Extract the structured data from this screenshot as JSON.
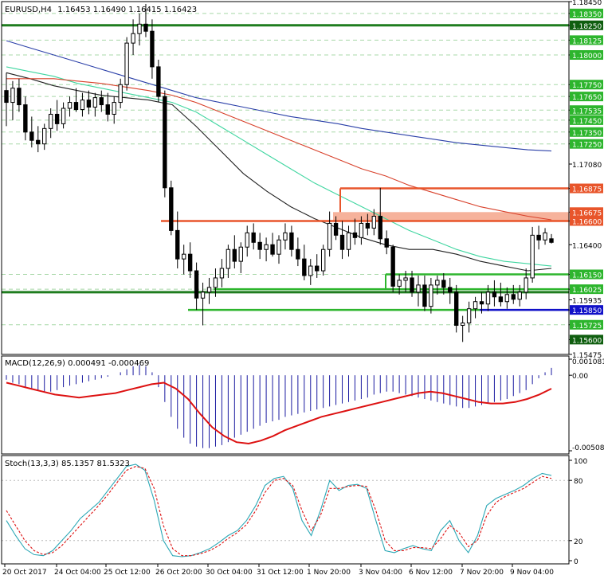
{
  "header": {
    "symbol": "EURUSD,H4",
    "ohlc": "1.16453 1.16490 1.16415 1.16423"
  },
  "colors": {
    "background": "#ffffff",
    "frame": "#000000",
    "grid_dash": "#a8d8a8",
    "candle_bull": "#ffffff",
    "candle_bear": "#000000",
    "level_green": "#2db52d",
    "level_darkgreen": "#1f7d1f",
    "level_red": "#e8552b",
    "zone_fill": "#f4a48a",
    "level_blue": "#1010c8",
    "ma_black": "#202020",
    "ma_cyan": "#3fd6a0",
    "ma_red": "#d8402a",
    "ma_blue": "#2a3fa8",
    "macd_signal": "#dd1111",
    "stoch_main": "#2aa7b5",
    "stoch_signal": "#dd1111",
    "label_green_bg": "#2db52d",
    "label_dark_bg": "#0f5e0f",
    "label_grey_text": "#ffffff"
  },
  "price_axis": {
    "min": 1.15475,
    "max": 1.1845,
    "labels": [
      {
        "value": "1.18450",
        "kind": "plain"
      },
      {
        "value": "1.18350",
        "kind": "green"
      },
      {
        "value": "1.18250",
        "kind": "dark"
      },
      {
        "value": "1.18125",
        "kind": "green"
      },
      {
        "value": "1.18000",
        "kind": "green"
      },
      {
        "value": "1.17750",
        "kind": "green"
      },
      {
        "value": "1.17650",
        "kind": "green"
      },
      {
        "value": "1.17535",
        "kind": "green"
      },
      {
        "value": "1.17450",
        "kind": "green"
      },
      {
        "value": "1.17350",
        "kind": "green"
      },
      {
        "value": "1.17250",
        "kind": "green"
      },
      {
        "value": "1.17080",
        "kind": "plain"
      },
      {
        "value": "1.16875",
        "kind": "red"
      },
      {
        "value": "1.16675",
        "kind": "red"
      },
      {
        "value": "1.16600",
        "kind": "red"
      },
      {
        "value": "1.16400",
        "kind": "plain"
      },
      {
        "value": "1.16150",
        "kind": "green"
      },
      {
        "value": "1.16025",
        "kind": "green"
      },
      {
        "value": "1.15935",
        "kind": "plain"
      },
      {
        "value": "1.15850",
        "kind": "blue"
      },
      {
        "value": "1.15725",
        "kind": "green"
      },
      {
        "value": "1.15600",
        "kind": "dark"
      },
      {
        "value": "1.15475",
        "kind": "plain"
      }
    ]
  },
  "time_axis": {
    "labels": [
      "20 Oct 2017",
      "24 Oct 04:00",
      "25 Oct 12:00",
      "26 Oct 20:00",
      "30 Oct 04:00",
      "31 Oct 12:00",
      "1 Nov 20:00",
      "3 Nov 04:00",
      "6 Nov 12:00",
      "7 Nov 20:00",
      "9 Nov 04:00"
    ]
  },
  "macd": {
    "title": "MACD(12,26,9) 0.000491 -0.000469",
    "axis_labels": [
      "0.001081",
      "0.00",
      "-0.005081"
    ],
    "min": -0.005081,
    "max": 0.001081
  },
  "stoch": {
    "title": "Stoch(13,3,3) 85.1357 81.5323",
    "axis_labels": [
      "100",
      "80",
      "20",
      "0"
    ]
  },
  "chart_data": [
    {
      "type": "candlestick",
      "title": "EURUSD,H4",
      "ylim": [
        1.15475,
        1.1845
      ],
      "candles": [
        [
          1.177,
          1.1785,
          1.174,
          1.176
        ],
        [
          1.176,
          1.1778,
          1.1745,
          1.1772
        ],
        [
          1.1772,
          1.178,
          1.1752,
          1.1758
        ],
        [
          1.1758,
          1.1765,
          1.1728,
          1.1735
        ],
        [
          1.1735,
          1.1748,
          1.1722,
          1.1728
        ],
        [
          1.1728,
          1.174,
          1.1718,
          1.1725
        ],
        [
          1.1725,
          1.1742,
          1.172,
          1.1738
        ],
        [
          1.1738,
          1.1755,
          1.173,
          1.175
        ],
        [
          1.175,
          1.1762,
          1.1736,
          1.1742
        ],
        [
          1.1742,
          1.176,
          1.1738,
          1.1755
        ],
        [
          1.1755,
          1.1765,
          1.1748,
          1.176
        ],
        [
          1.176,
          1.1772,
          1.1752,
          1.1754
        ],
        [
          1.1754,
          1.1768,
          1.1748,
          1.1762
        ],
        [
          1.1762,
          1.177,
          1.175,
          1.1756
        ],
        [
          1.1756,
          1.1768,
          1.1748,
          1.1764
        ],
        [
          1.1764,
          1.177,
          1.1752,
          1.1758
        ],
        [
          1.1758,
          1.1768,
          1.1744,
          1.175
        ],
        [
          1.175,
          1.1765,
          1.1742,
          1.176
        ],
        [
          1.176,
          1.178,
          1.1755,
          1.1775
        ],
        [
          1.1775,
          1.1815,
          1.177,
          1.181
        ],
        [
          1.181,
          1.183,
          1.18,
          1.1818
        ],
        [
          1.1818,
          1.1835,
          1.1808,
          1.1826
        ],
        [
          1.1826,
          1.1843,
          1.1815,
          1.182
        ],
        [
          1.182,
          1.183,
          1.178,
          1.179
        ],
        [
          1.179,
          1.1796,
          1.176,
          1.1765
        ],
        [
          1.1765,
          1.177,
          1.168,
          1.1688
        ],
        [
          1.1688,
          1.1694,
          1.1648,
          1.1652
        ],
        [
          1.1652,
          1.1668,
          1.162,
          1.1628
        ],
        [
          1.1628,
          1.164,
          1.1615,
          1.1632
        ],
        [
          1.1632,
          1.1642,
          1.1612,
          1.1618
        ],
        [
          1.1618,
          1.1625,
          1.1585,
          1.1595
        ],
        [
          1.1595,
          1.1608,
          1.1572,
          1.16
        ],
        [
          1.16,
          1.1612,
          1.159,
          1.1604
        ],
        [
          1.1604,
          1.162,
          1.1596,
          1.1612
        ],
        [
          1.1612,
          1.1628,
          1.1604,
          1.162
        ],
        [
          1.162,
          1.164,
          1.1612,
          1.1636
        ],
        [
          1.1636,
          1.1648,
          1.162,
          1.1626
        ],
        [
          1.1626,
          1.1642,
          1.1616,
          1.1638
        ],
        [
          1.1638,
          1.1656,
          1.163,
          1.165
        ],
        [
          1.165,
          1.1658,
          1.1636,
          1.1642
        ],
        [
          1.1642,
          1.165,
          1.1628,
          1.1636
        ],
        [
          1.1636,
          1.1646,
          1.1626,
          1.164
        ],
        [
          1.164,
          1.165,
          1.163,
          1.1632
        ],
        [
          1.1632,
          1.1648,
          1.1624,
          1.1644
        ],
        [
          1.1644,
          1.1658,
          1.1636,
          1.165
        ],
        [
          1.165,
          1.1656,
          1.163,
          1.1636
        ],
        [
          1.1636,
          1.1646,
          1.1622,
          1.1628
        ],
        [
          1.1628,
          1.164,
          1.161,
          1.1614
        ],
        [
          1.1614,
          1.1628,
          1.1606,
          1.1622
        ],
        [
          1.1622,
          1.1632,
          1.1612,
          1.1618
        ],
        [
          1.1618,
          1.164,
          1.1614,
          1.1636
        ],
        [
          1.1636,
          1.1668,
          1.163,
          1.1658
        ],
        [
          1.1658,
          1.1664,
          1.1644,
          1.1648
        ],
        [
          1.1648,
          1.166,
          1.1628,
          1.1636
        ],
        [
          1.1636,
          1.1656,
          1.163,
          1.165
        ],
        [
          1.165,
          1.1662,
          1.164,
          1.1646
        ],
        [
          1.1646,
          1.1664,
          1.164,
          1.1658
        ],
        [
          1.1658,
          1.1666,
          1.1648,
          1.1654
        ],
        [
          1.1654,
          1.167,
          1.1648,
          1.1664
        ],
        [
          1.1664,
          1.1688,
          1.164,
          1.1645
        ],
        [
          1.1645,
          1.1652,
          1.1632,
          1.1638
        ],
        [
          1.1638,
          1.164,
          1.16,
          1.1605
        ],
        [
          1.1605,
          1.1615,
          1.1598,
          1.161
        ],
        [
          1.161,
          1.1618,
          1.16,
          1.1612
        ],
        [
          1.1612,
          1.1618,
          1.1596,
          1.16
        ],
        [
          1.16,
          1.1614,
          1.1588,
          1.1606
        ],
        [
          1.1606,
          1.1614,
          1.1584,
          1.1588
        ],
        [
          1.1588,
          1.1612,
          1.1582,
          1.1606
        ],
        [
          1.1606,
          1.1614,
          1.1598,
          1.161
        ],
        [
          1.161,
          1.1616,
          1.1598,
          1.1604
        ],
        [
          1.1604,
          1.1612,
          1.159,
          1.16
        ],
        [
          1.16,
          1.1606,
          1.1566,
          1.1572
        ],
        [
          1.1572,
          1.158,
          1.1558,
          1.1574
        ],
        [
          1.1574,
          1.1592,
          1.1566,
          1.1586
        ],
        [
          1.1586,
          1.1596,
          1.1578,
          1.1592
        ],
        [
          1.1592,
          1.16,
          1.1582,
          1.159
        ],
        [
          1.159,
          1.1606,
          1.1584,
          1.16
        ],
        [
          1.16,
          1.161,
          1.1588,
          1.1596
        ],
        [
          1.1596,
          1.1608,
          1.1588,
          1.1592
        ],
        [
          1.1592,
          1.1604,
          1.1586,
          1.1598
        ],
        [
          1.1598,
          1.1606,
          1.159,
          1.1594
        ],
        [
          1.1594,
          1.1606,
          1.1588,
          1.16
        ],
        [
          1.16,
          1.162,
          1.1594,
          1.1612
        ],
        [
          1.1612,
          1.1655,
          1.1608,
          1.1648
        ],
        [
          1.1648,
          1.1656,
          1.1636,
          1.1644
        ],
        [
          1.1644,
          1.1654,
          1.164,
          1.165
        ],
        [
          1.1645,
          1.1649,
          1.1641,
          1.1642
        ]
      ],
      "levels": [
        {
          "price": 1.1825,
          "color": "darkgreen",
          "kind": "line"
        },
        {
          "price": 1.16,
          "color": "darkgreen",
          "kind": "line"
        },
        {
          "price": 1.1615,
          "color": "green",
          "kind": "segment"
        },
        {
          "price": 1.16025,
          "color": "green",
          "kind": "segment"
        },
        {
          "price": 1.1585,
          "color": "green",
          "kind": "segment"
        },
        {
          "price": 1.1585,
          "color": "blue",
          "kind": "segment"
        },
        {
          "price": 1.16875,
          "color": "red",
          "kind": "segment"
        },
        {
          "price": 1.166,
          "color": "red",
          "kind": "segment"
        }
      ],
      "zone": {
        "from": 1.166,
        "to": 1.16675
      },
      "moving_averages": [
        {
          "color": "black",
          "values": [
            1.1785,
            1.178,
            1.1774,
            1.177,
            1.1766,
            1.1764,
            1.1762,
            1.1758,
            1.174,
            1.172,
            1.17,
            1.1685,
            1.1672,
            1.1662,
            1.1654,
            1.1646,
            1.164,
            1.1636,
            1.1636,
            1.1632,
            1.1626,
            1.1622,
            1.1618,
            1.162
          ]
        },
        {
          "color": "cyan",
          "values": [
            1.179,
            1.1786,
            1.1782,
            1.1776,
            1.1772,
            1.1768,
            1.1764,
            1.176,
            1.1752,
            1.174,
            1.1728,
            1.1716,
            1.1704,
            1.1692,
            1.1682,
            1.1672,
            1.1662,
            1.1652,
            1.1644,
            1.1636,
            1.163,
            1.1626,
            1.1624,
            1.1622
          ]
        },
        {
          "color": "red",
          "values": [
            1.178,
            1.178,
            1.178,
            1.1778,
            1.1776,
            1.1773,
            1.177,
            1.1766,
            1.176,
            1.1752,
            1.1744,
            1.1736,
            1.1728,
            1.172,
            1.1712,
            1.1704,
            1.1698,
            1.169,
            1.1684,
            1.1678,
            1.1672,
            1.1668,
            1.1664,
            1.1661
          ]
        },
        {
          "color": "blue",
          "values": [
            1.1812,
            1.1806,
            1.18,
            1.1794,
            1.1788,
            1.1782,
            1.1776,
            1.177,
            1.1764,
            1.176,
            1.1756,
            1.1752,
            1.1748,
            1.1745,
            1.1742,
            1.1738,
            1.1735,
            1.1732,
            1.1729,
            1.1726,
            1.1724,
            1.1722,
            1.172,
            1.1719
          ]
        }
      ]
    },
    {
      "type": "histogram+line",
      "title": "MACD(12,26,9) 0.000491 -0.000469",
      "ylim": [
        -0.005081,
        0.001081
      ],
      "histogram": [
        -0.0003,
        -0.0005,
        -0.0006,
        -0.0008,
        -0.0009,
        -0.001,
        -0.0011,
        -0.0011,
        -0.001,
        -0.0008,
        -0.0007,
        -0.0006,
        -0.0005,
        -0.0004,
        -0.0003,
        -0.0002,
        -0.0001,
        0.0,
        0.0002,
        0.0004,
        0.0006,
        0.0007,
        0.0006,
        0.0002,
        -0.0008,
        -0.0018,
        -0.0028,
        -0.0036,
        -0.0042,
        -0.0046,
        -0.0048,
        -0.0049,
        -0.0049,
        -0.0048,
        -0.0047,
        -0.0045,
        -0.0042,
        -0.004,
        -0.0038,
        -0.0036,
        -0.0034,
        -0.0032,
        -0.0031,
        -0.003,
        -0.0028,
        -0.0027,
        -0.0026,
        -0.0025,
        -0.0024,
        -0.0023,
        -0.0022,
        -0.0021,
        -0.002,
        -0.0019,
        -0.0018,
        -0.0017,
        -0.0016,
        -0.0015,
        -0.0013,
        -0.0012,
        -0.0011,
        -0.0011,
        -0.0012,
        -0.0013,
        -0.0014,
        -0.0015,
        -0.0016,
        -0.0017,
        -0.0018,
        -0.0019,
        -0.002,
        -0.0021,
        -0.0022,
        -0.0022,
        -0.0021,
        -0.002,
        -0.0019,
        -0.0018,
        -0.0017,
        -0.0016,
        -0.0014,
        -0.0012,
        -0.001,
        -0.0006,
        -0.0002,
        0.0002,
        0.0005
      ],
      "signal": [
        -0.0005,
        -0.0007,
        -0.0009,
        -0.0011,
        -0.0013,
        -0.0014,
        -0.0015,
        -0.0014,
        -0.0013,
        -0.0012,
        -0.001,
        -0.0008,
        -0.0006,
        -0.0005,
        -0.0009,
        -0.0016,
        -0.0026,
        -0.0035,
        -0.0041,
        -0.0045,
        -0.0046,
        -0.0044,
        -0.0041,
        -0.0037,
        -0.0034,
        -0.0031,
        -0.0028,
        -0.0026,
        -0.0024,
        -0.0022,
        -0.002,
        -0.0018,
        -0.0016,
        -0.0014,
        -0.0012,
        -0.0011,
        -0.0012,
        -0.0014,
        -0.0016,
        -0.0018,
        -0.0019,
        -0.0019,
        -0.0018,
        -0.0016,
        -0.0013,
        -0.0009
      ]
    },
    {
      "type": "line",
      "title": "Stoch(13,3,3) 85.1357 81.5323",
      "ylim": [
        0,
        100
      ],
      "series": [
        {
          "name": "main",
          "values": [
            40,
            25,
            12,
            6,
            5,
            10,
            20,
            30,
            42,
            50,
            58,
            70,
            82,
            94,
            96,
            90,
            60,
            20,
            5,
            4,
            5,
            8,
            12,
            18,
            25,
            30,
            40,
            55,
            75,
            82,
            84,
            72,
            40,
            25,
            50,
            80,
            70,
            75,
            76,
            72,
            40,
            10,
            8,
            12,
            15,
            12,
            10,
            30,
            40,
            20,
            8,
            25,
            55,
            62,
            66,
            70,
            75,
            82,
            87,
            85
          ]
        },
        {
          "name": "signal",
          "values": [
            50,
            35,
            20,
            10,
            6,
            8,
            15,
            25,
            35,
            45,
            55,
            66,
            78,
            90,
            94,
            92,
            72,
            35,
            12,
            5,
            5,
            7,
            10,
            15,
            22,
            28,
            36,
            50,
            68,
            80,
            82,
            75,
            50,
            30,
            45,
            72,
            72,
            74,
            75,
            74,
            50,
            20,
            10,
            10,
            13,
            13,
            12,
            22,
            35,
            28,
            14,
            20,
            45,
            58,
            64,
            68,
            72,
            78,
            84,
            82
          ]
        }
      ]
    }
  ]
}
